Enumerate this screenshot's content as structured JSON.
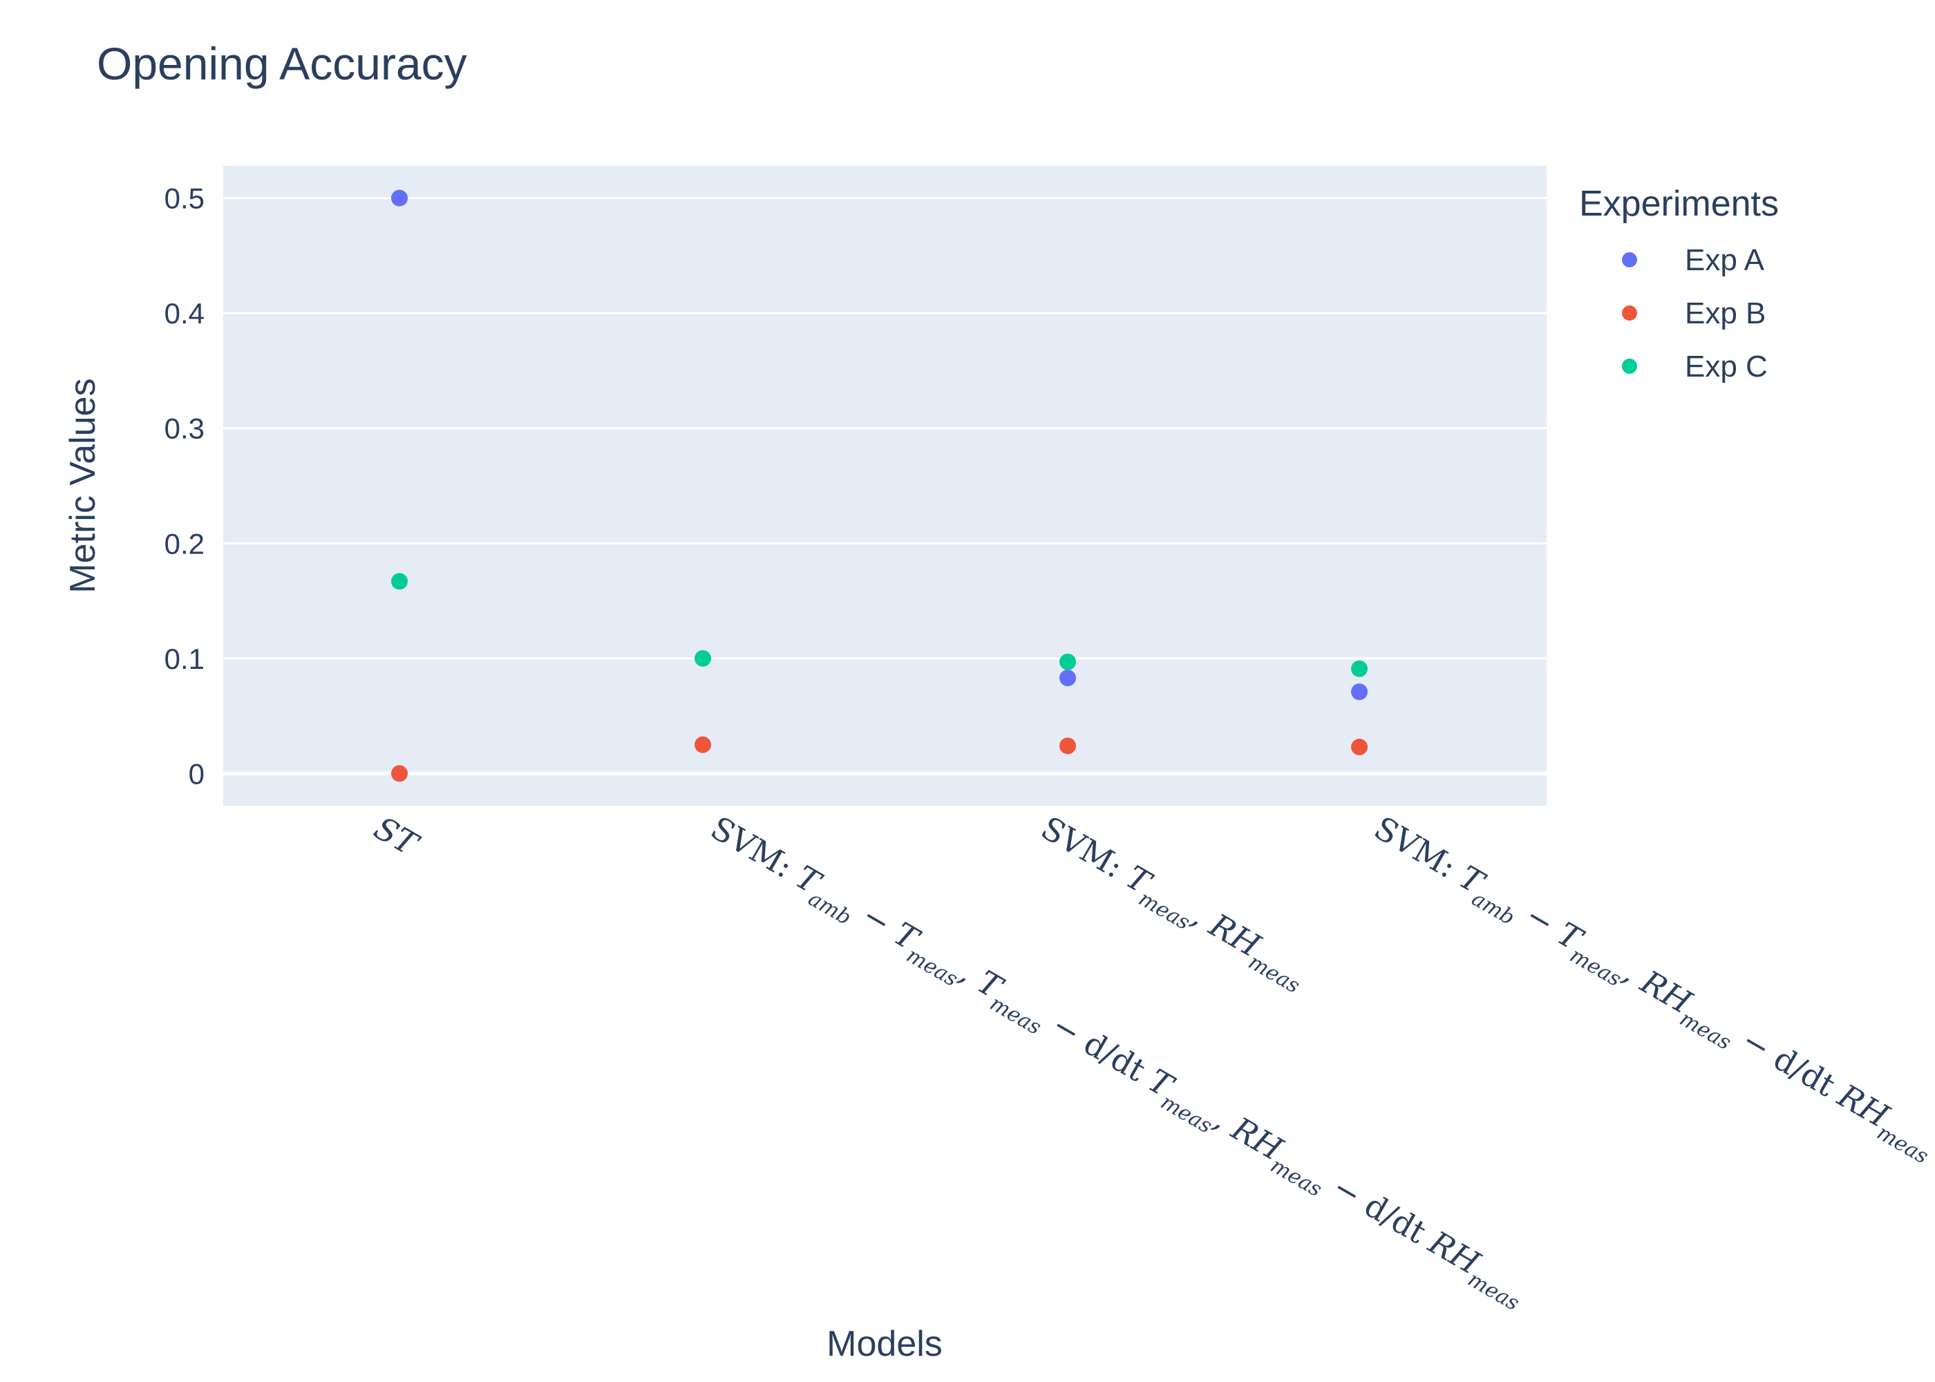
{
  "chart_data": {
    "type": "scatter",
    "title": "Opening Accuracy",
    "xlabel": "Models",
    "ylabel": "Metric Values",
    "ylim": [
      -0.028,
      0.528
    ],
    "yticks": [
      0,
      0.1,
      0.2,
      0.3,
      0.4,
      0.5
    ],
    "ytick_labels": [
      "0",
      "0.1",
      "0.2",
      "0.3",
      "0.4",
      "0.5"
    ],
    "grid": true,
    "legend_title": "Experiments",
    "legend_position": "right",
    "categories": [
      "ST",
      "SVM: T_amb − T_meas, T_meas − d/dt T_meas, RH_meas − d/dt RH_meas",
      "SVM: T_meas, RH_meas",
      "SVM: T_amb − T_meas, RH_meas − d/dt RH_meas"
    ],
    "series": [
      {
        "name": "Exp A",
        "color": "#636efa",
        "values": [
          0.5,
          null,
          0.083,
          0.071
        ]
      },
      {
        "name": "Exp B",
        "color": "#ef553b",
        "values": [
          0.0,
          0.025,
          0.024,
          0.023
        ]
      },
      {
        "name": "Exp C",
        "color": "#00cc96",
        "values": [
          0.167,
          0.1,
          0.097,
          0.091
        ]
      }
    ]
  }
}
